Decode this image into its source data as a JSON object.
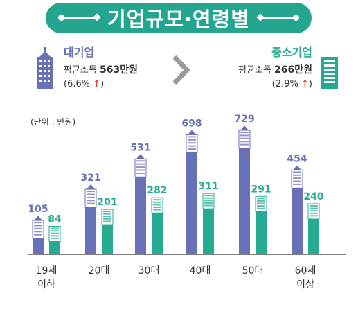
{
  "title": "기업규모·연령별",
  "unit": "(단위 : 만원)",
  "colors": {
    "large": "#6870b8",
    "small": "#24ab92",
    "banner": "#23a58f",
    "up": "#e0423a"
  },
  "legend": {
    "large": {
      "name": "대기업",
      "label": "평균소득",
      "value": "563만원",
      "change": "(6.6%",
      "arrow": "↑",
      "close": ")"
    },
    "small": {
      "name": "중소기업",
      "label": "평균소득",
      "value": "266만원",
      "change": "(2.9%",
      "arrow": "↑",
      "close": ")"
    }
  },
  "chart_data": {
    "type": "bar",
    "categories": [
      [
        "19세",
        "이하"
      ],
      [
        "20대"
      ],
      [
        "30대"
      ],
      [
        "40대"
      ],
      [
        "50대"
      ],
      [
        "60세",
        "이상"
      ]
    ],
    "series": [
      {
        "name": "대기업",
        "values": [
          105,
          321,
          531,
          698,
          729,
          454
        ]
      },
      {
        "name": "중소기업",
        "values": [
          84,
          201,
          282,
          311,
          291,
          240
        ]
      }
    ],
    "ylim": [
      0,
      729
    ],
    "grid": false,
    "legend": "top"
  }
}
